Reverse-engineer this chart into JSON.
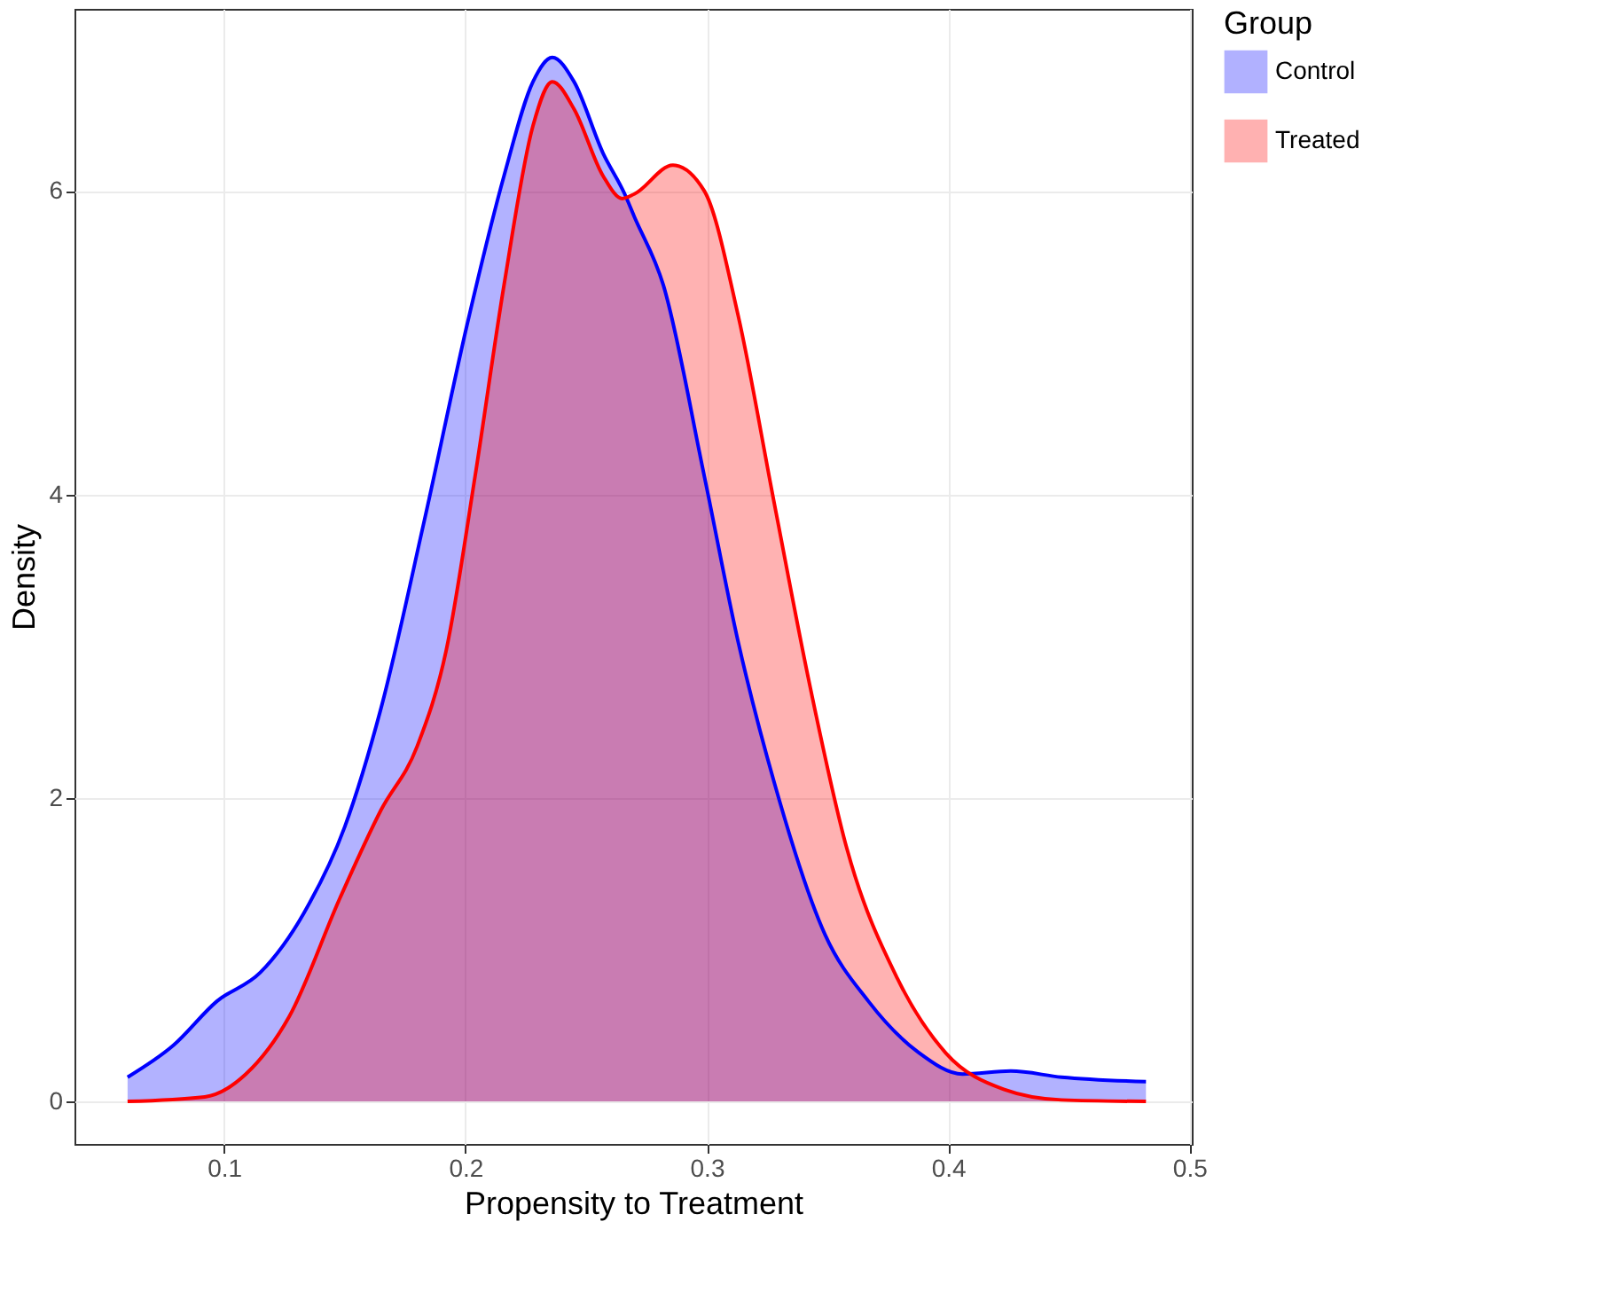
{
  "chart_data": {
    "type": "area",
    "xlabel": "Propensity to Treatment",
    "ylabel": "Density",
    "legend_title": "Group",
    "legend": "right",
    "grid": true,
    "xlim": [
      0.038,
      0.501
    ],
    "ylim": [
      -0.28,
      7.2
    ],
    "xticks": [
      0.1,
      0.2,
      0.3,
      0.4,
      0.5
    ],
    "yticks": [
      0,
      2,
      4,
      6
    ],
    "series": [
      {
        "name": "Control",
        "color": "#0000ff",
        "x": [
          0.06,
          0.079,
          0.097,
          0.115,
          0.133,
          0.15,
          0.165,
          0.183,
          0.201,
          0.216,
          0.228,
          0.236,
          0.245,
          0.257,
          0.266,
          0.27,
          0.282,
          0.299,
          0.313,
          0.328,
          0.349,
          0.367,
          0.388,
          0.406,
          0.426,
          0.447,
          0.482
        ],
        "values": [
          0.16,
          0.37,
          0.66,
          0.85,
          1.24,
          1.81,
          2.59,
          3.83,
          5.14,
          6.1,
          6.72,
          6.88,
          6.72,
          6.25,
          5.98,
          5.83,
          5.38,
          4.12,
          3.03,
          2.1,
          1.1,
          0.66,
          0.32,
          0.18,
          0.2,
          0.16,
          0.13
        ]
      },
      {
        "name": "Treated",
        "color": "#ff0000",
        "x": [
          0.06,
          0.092,
          0.109,
          0.127,
          0.148,
          0.165,
          0.18,
          0.192,
          0.204,
          0.216,
          0.228,
          0.236,
          0.245,
          0.257,
          0.265,
          0.27,
          0.286,
          0.299,
          0.313,
          0.328,
          0.343,
          0.358,
          0.379,
          0.399,
          0.423,
          0.447,
          0.482
        ],
        "values": [
          0,
          0.03,
          0.18,
          0.56,
          1.34,
          1.92,
          2.34,
          2.97,
          4.12,
          5.38,
          6.43,
          6.72,
          6.54,
          6.1,
          5.95,
          5.98,
          6.17,
          6.0,
          5.18,
          3.94,
          2.72,
          1.67,
          0.81,
          0.32,
          0.08,
          0.01,
          0
        ]
      }
    ]
  }
}
